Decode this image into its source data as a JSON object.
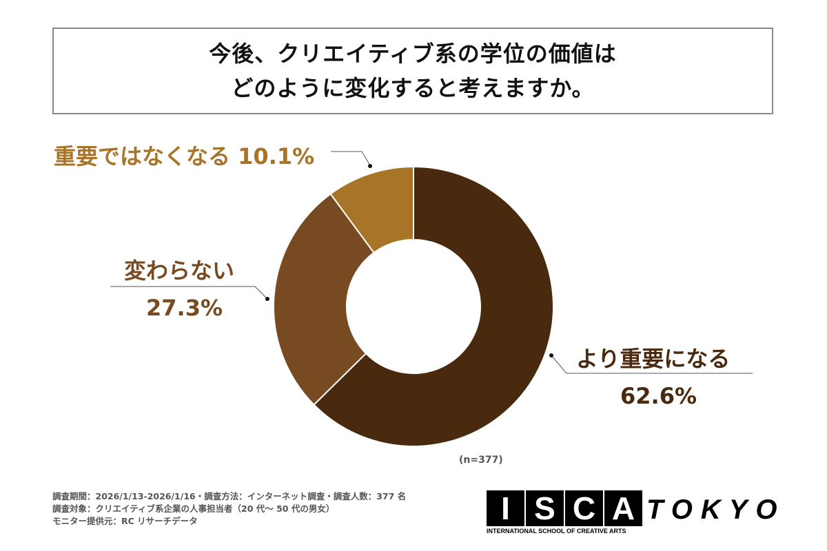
{
  "title": {
    "line1": "今後、クリエイティブ系の学位の価値は",
    "line2": "どのように変化すると考えますか。"
  },
  "chart_data": {
    "type": "pie",
    "donut": true,
    "slices": [
      {
        "label": "より重要になる",
        "value": 62.6,
        "display": "62.6%",
        "color": "#4a2a0e"
      },
      {
        "label": "変わらない",
        "value": 27.3,
        "display": "27.3%",
        "color": "#774a22"
      },
      {
        "label": "重要ではなくなる",
        "value": 10.1,
        "display": "10.1%",
        "color": "#a87428"
      }
    ],
    "start": "12 o'clock, clockwise",
    "note": "(n=377)"
  },
  "footer": {
    "line1": "調査期間：2026/1/13-2026/1/16・調査方法：インターネット調査・調査人数：377 名",
    "line2": "調査対象：クリエイティブ系企業の人事担当者（20 代～ 50 代の男女）",
    "line3": "モニター提供元：RC リサーチデータ"
  },
  "logo": {
    "letters": [
      "I",
      "S",
      "C",
      "A"
    ],
    "tokyo": "TOKYO",
    "sub": "INTERNATIONAL SCHOOL OF CREATIVE ARTS"
  }
}
